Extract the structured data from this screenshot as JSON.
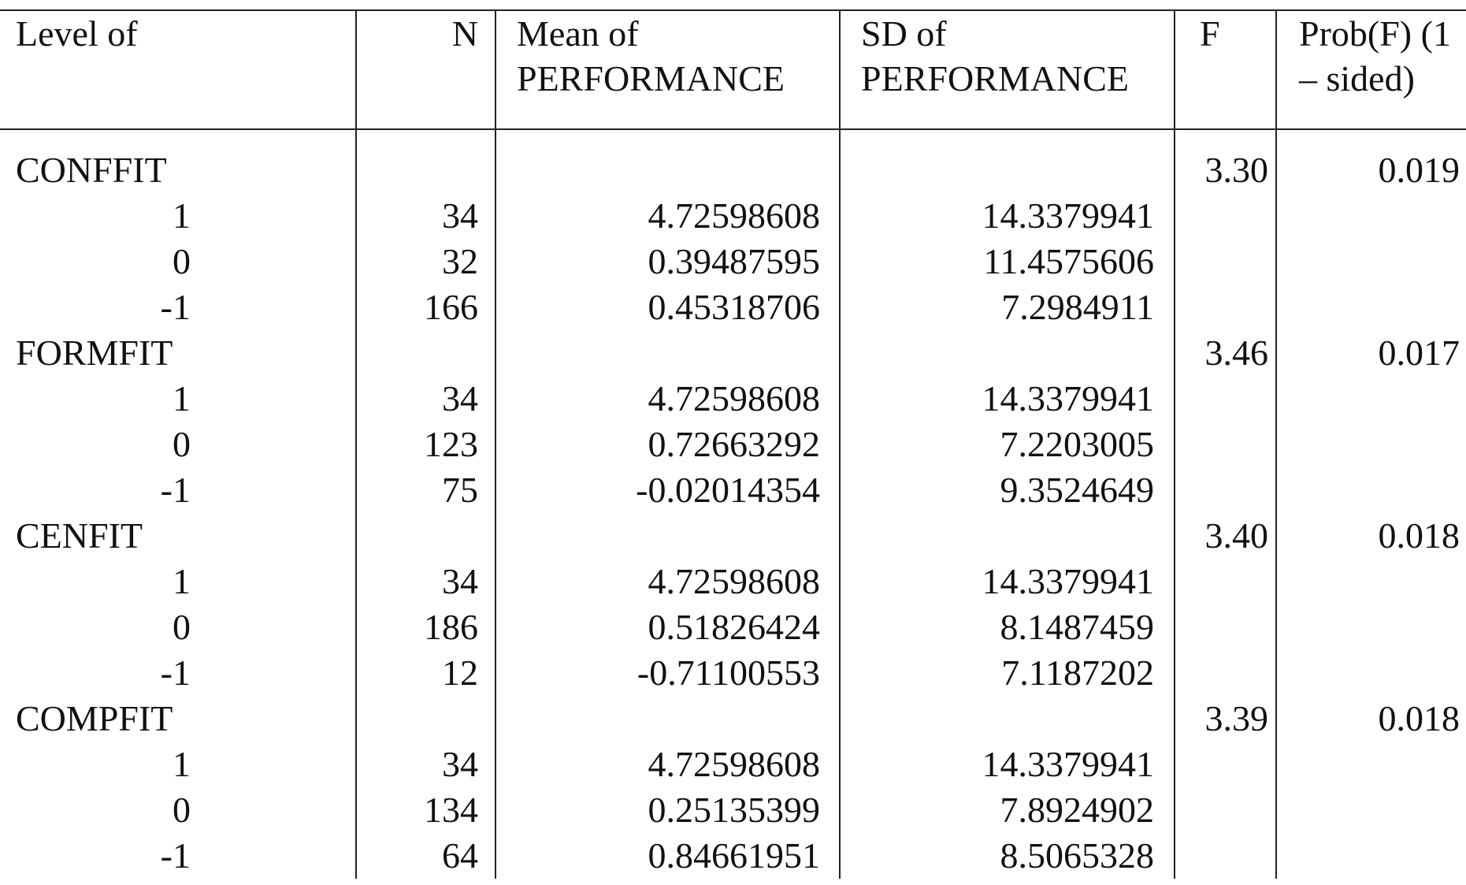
{
  "header": [
    "Level of",
    "N",
    "Mean of PERFORMANCE",
    "SD of PERFORMANCE",
    "F",
    "Prob(F) (1 – sided)"
  ],
  "groups": [
    {
      "name": "CONFFIT",
      "f": "3.30",
      "prob": "0.019",
      "rows": [
        [
          "1",
          "34",
          "4.72598608",
          "14.3379941"
        ],
        [
          "0",
          "32",
          "0.39487595",
          "11.4575606"
        ],
        [
          "-1",
          "166",
          "0.45318706",
          "7.2984911"
        ]
      ]
    },
    {
      "name": "FORMFIT",
      "f": "3.46",
      "prob": "0.017",
      "rows": [
        [
          "1",
          "34",
          "4.72598608",
          "14.3379941"
        ],
        [
          "0",
          "123",
          "0.72663292",
          "7.2203005"
        ],
        [
          "-1",
          "75",
          "-0.02014354",
          "9.3524649"
        ]
      ]
    },
    {
      "name": "CENFIT",
      "f": "3.40",
      "prob": "0.018",
      "rows": [
        [
          "1",
          "34",
          "4.72598608",
          "14.3379941"
        ],
        [
          "0",
          "186",
          "0.51826424",
          "8.1487459"
        ],
        [
          "-1",
          "12",
          "-0.71100553",
          "7.1187202"
        ]
      ]
    },
    {
      "name": "COMPFIT",
      "f": "3.39",
      "prob": "0.018",
      "rows": [
        [
          "1",
          "34",
          "4.72598608",
          "14.3379941"
        ],
        [
          "0",
          "134",
          "0.25135399",
          "7.8924902"
        ],
        [
          "-1",
          "64",
          "0.84661951",
          "8.5065328"
        ]
      ]
    }
  ]
}
